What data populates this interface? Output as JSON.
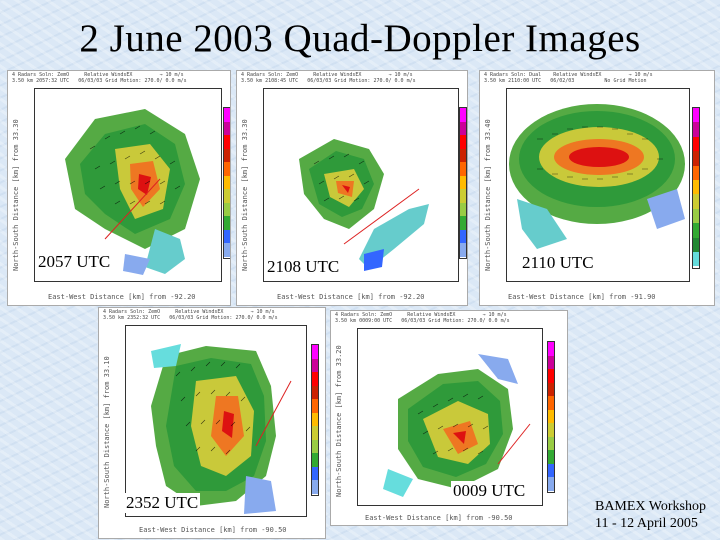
{
  "title": "2 June 2003 Quad-Doppler Images",
  "colors": {
    "scale": [
      "#ff00ff",
      "#cc0099",
      "#ff0000",
      "#cc2200",
      "#ff6600",
      "#ffbb00",
      "#cccc33",
      "#99cc44",
      "#33aa33",
      "#228833",
      "#3366ff",
      "#88aaee",
      "#66dddd"
    ]
  },
  "colorbar_ticks": [
    "63",
    "59",
    "55",
    "51",
    "47",
    "43",
    "39",
    "35",
    "31",
    "27",
    "23",
    "19"
  ],
  "panels": [
    {
      "time": "2057 UTC",
      "header": "4 Radars Soln: ZemO     Relative WindsEX         → 10 m/s\n3.50 km 2057:32 UTC   06/03/03 Grid Motion: 270.0/ 0.0 m/s",
      "ylabel": "North-South Distance [km] from   33.30",
      "xlabel": "East-West Distance [km] from   -92.20",
      "yticks": [
        "188",
        "161",
        "134",
        "107",
        "81",
        "54",
        "27"
      ],
      "xticks": [
        "0",
        "27",
        "54",
        "81",
        "107",
        "134",
        "161",
        "187"
      ]
    },
    {
      "time": "2108 UTC",
      "header": "4 Radars Soln: ZemO     Relative WindsEX         → 10 m/s\n3.50 km 2108:45 UTC   06/03/03 Grid Motion: 270.0/ 0.0 m/s",
      "ylabel": "North-South Distance [km] from   33.30",
      "xlabel": "East-West Distance [km] from   -92.20",
      "yticks": [
        "188",
        "161",
        "134",
        "107",
        "81",
        "54",
        "27"
      ],
      "xticks": [
        "0",
        "27",
        "54",
        "81",
        "107",
        "134",
        "161",
        "187"
      ]
    },
    {
      "time": "2110 UTC",
      "header": "4 Radars Soln: Dual    Relative WindsEX         → 10 m/s\n3.50 km 2110:00 UTC   06/02/03          No Grid Motion",
      "ylabel": "North-South Distance [km] from   33.40",
      "xlabel": "East-West Distance [km] from   -91.90",
      "yticks": [
        "188",
        "163",
        "138",
        "110",
        "90",
        "63",
        "40",
        "17"
      ],
      "xticks": [
        "0",
        "14",
        "29",
        "43",
        "57",
        "72",
        "86",
        "100",
        "115",
        "129",
        "143",
        "157"
      ]
    },
    {
      "time": "2352 UTC",
      "header": "4 Radars Soln: ZemO     Relative WindsEX         → 10 m/s\n3.50 km 2352:32 UTC   06/03/03 Grid Motion: 270.0/ 0.0 m/s",
      "ylabel": "North-South Distance [km] from   33.10",
      "xlabel": "East-West Distance [km] from   -90.50",
      "yticks": [
        "198",
        "171",
        "146",
        "120",
        "92",
        "66",
        "41",
        "16"
      ],
      "xticks": [
        "0",
        "27",
        "54",
        "81",
        "107",
        "135",
        "165",
        "195"
      ]
    },
    {
      "time": "0009 UTC",
      "header": "4 Radars Soln: ZemO     Relative WindsEX         → 10 m/s\n3.50 km 0009:00 UTC   06/03/03 Grid Motion: 270.0/ 0.0 m/s",
      "ylabel": "North-South Distance [km] from   33.20",
      "xlabel": "East-West Distance [km] from   -90.50",
      "yticks": [
        "188",
        "161",
        "134",
        "107",
        "81",
        "54",
        "27"
      ],
      "xticks": [
        "0",
        "29",
        "58",
        "87",
        "116",
        "145",
        "174",
        "202"
      ]
    }
  ],
  "footer": {
    "line1": "BAMEX Workshop",
    "line2": "11 - 12 April 2005"
  }
}
